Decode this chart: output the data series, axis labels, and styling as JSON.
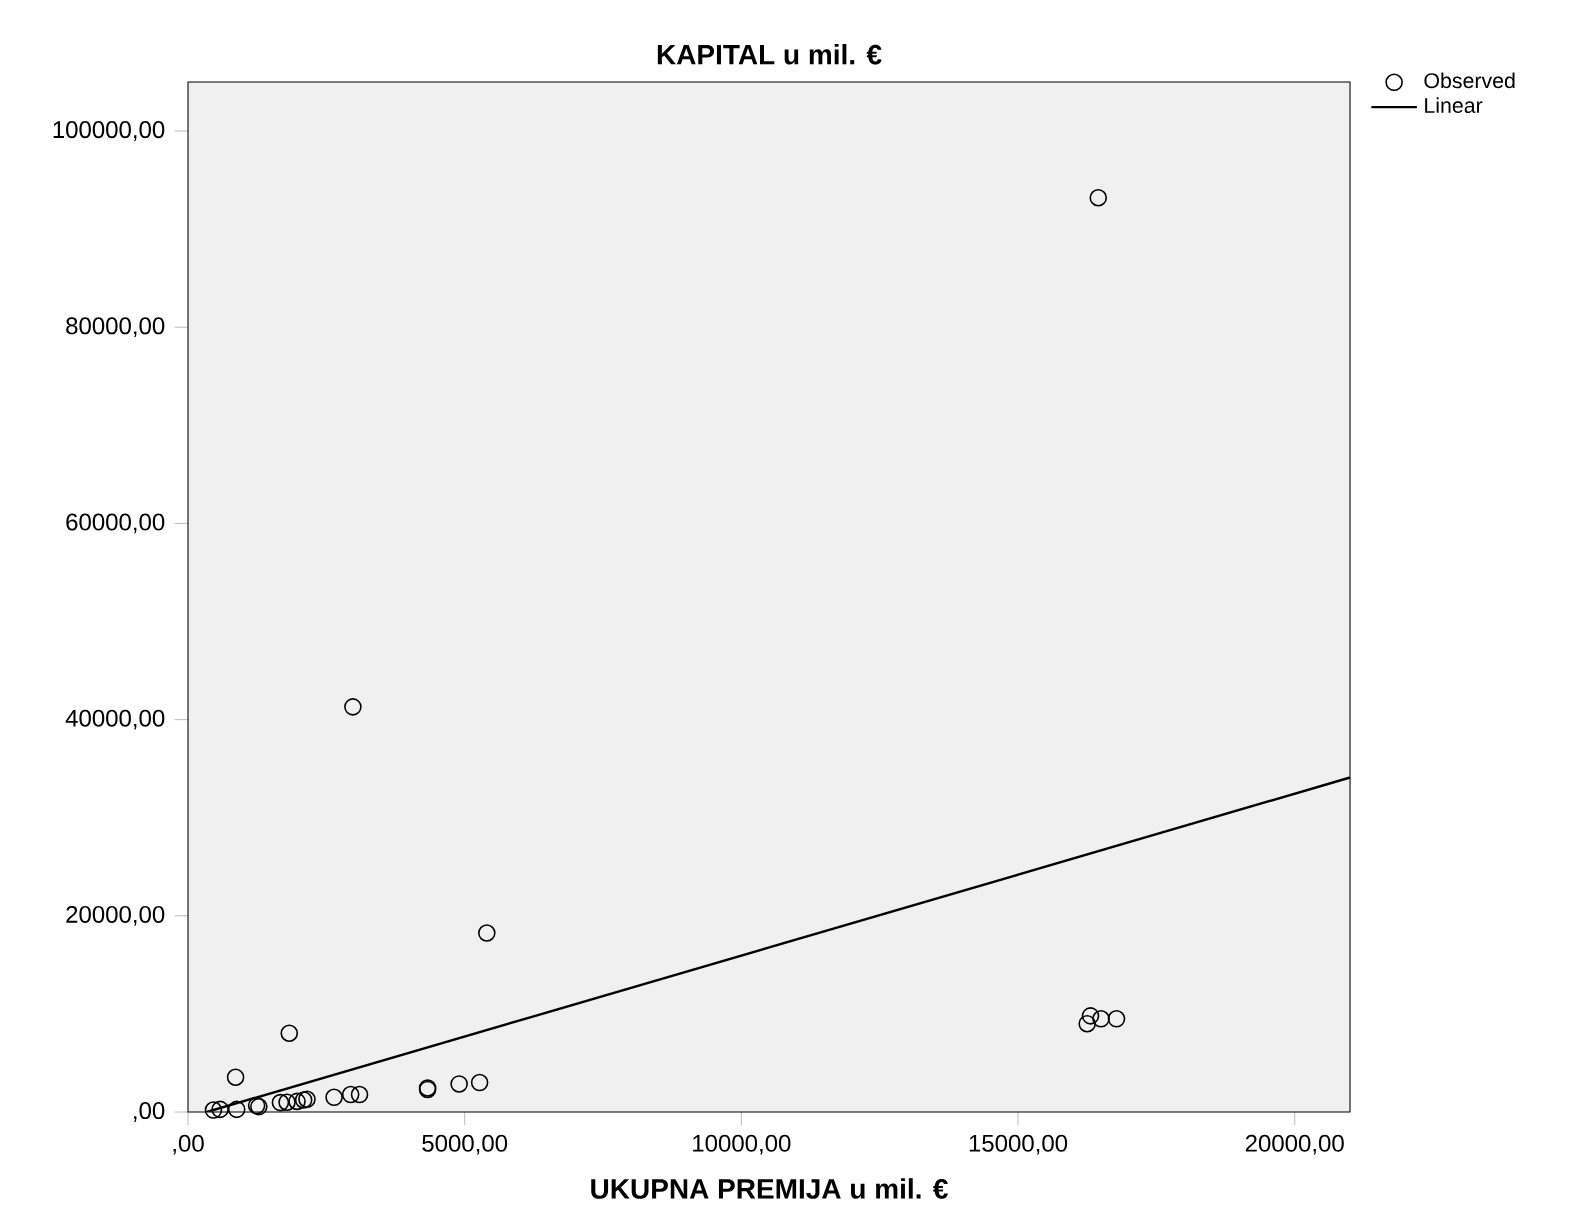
{
  "chart_data": {
    "type": "scatter",
    "title": "KAPITAL u mil. €",
    "xlabel": "UKUPNA PREMIJA u mil. €",
    "xlim": [
      0,
      21000
    ],
    "ylim": [
      0,
      105000
    ],
    "xticks": [
      {
        "value": 0,
        "label": ",00"
      },
      {
        "value": 5000,
        "label": "5000,00"
      },
      {
        "value": 10000,
        "label": "10000,00"
      },
      {
        "value": 15000,
        "label": "15000,00"
      },
      {
        "value": 20000,
        "label": "20000,00"
      }
    ],
    "yticks": [
      {
        "value": 0,
        "label": ",00"
      },
      {
        "value": 20000,
        "label": "20000,00"
      },
      {
        "value": 40000,
        "label": "40000,00"
      },
      {
        "value": 60000,
        "label": "60000,00"
      },
      {
        "value": 80000,
        "label": "80000,00"
      },
      {
        "value": 100000,
        "label": "100000,00"
      }
    ],
    "legend": "top right",
    "series": [
      {
        "name": "Observed",
        "marker": "circle",
        "color": "#000000",
        "x": [
          16450,
          2980,
          5400,
          860,
          1830,
          4900,
          5270,
          4330,
          4330,
          2640,
          2940,
          3100,
          2090,
          1970,
          2150,
          1670,
          1790,
          1280,
          1240,
          880,
          580,
          460,
          16250,
          16310,
          16500,
          16780
        ],
        "values": [
          93200,
          41300,
          18250,
          3540,
          8030,
          2860,
          3000,
          2450,
          2300,
          1500,
          1780,
          1780,
          1230,
          1080,
          1300,
          960,
          1000,
          550,
          650,
          270,
          270,
          200,
          9000,
          9800,
          9500,
          9500
        ]
      },
      {
        "name": "Linear",
        "type": "line",
        "color": "#000000",
        "x": [
          340,
          21000
        ],
        "values": [
          0,
          34100
        ]
      }
    ]
  }
}
